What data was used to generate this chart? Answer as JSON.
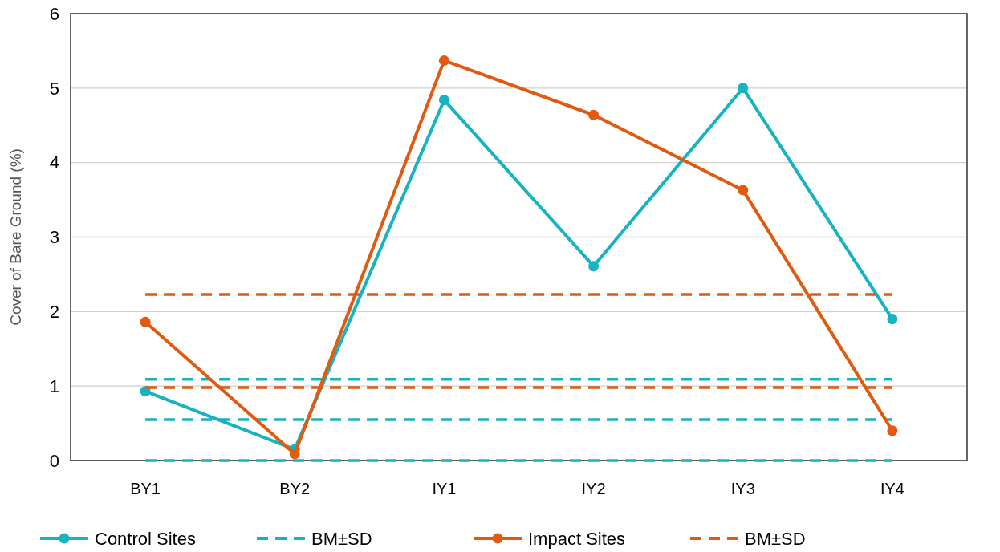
{
  "chart_data": {
    "type": "line",
    "ylabel": "Cover of Bare Ground (%)",
    "categories": [
      "BY1",
      "BY2",
      "IY1",
      "IY2",
      "IY3",
      "IY4"
    ],
    "series": [
      {
        "name": "Control Sites",
        "color": "#17b3c1",
        "values": [
          0.93,
          0.15,
          4.84,
          2.61,
          5.0,
          1.9
        ],
        "marker": "circle",
        "line_style": "solid"
      },
      {
        "name": "BM±SD",
        "color": "#17b3c1",
        "values": [
          1.09,
          1.09,
          1.09,
          1.09,
          1.09,
          1.09
        ],
        "marker": "none",
        "line_style": "dashed"
      },
      {
        "color": "#17b3c1",
        "values": [
          0.55,
          0.55,
          0.55,
          0.55,
          0.55,
          0.55
        ],
        "marker": "none",
        "line_style": "dashed"
      },
      {
        "color": "#17b3c1",
        "values": [
          0,
          0,
          0,
          0,
          0,
          0
        ],
        "marker": "none",
        "line_style": "dashed"
      },
      {
        "name": "Impact Sites",
        "color": "#e05a10",
        "values": [
          1.86,
          0.09,
          5.37,
          4.64,
          3.63,
          0.4
        ],
        "marker": "circle",
        "line_style": "solid"
      },
      {
        "name": "BM±SD",
        "color": "#e05a10",
        "values": [
          2.23,
          2.23,
          2.23,
          2.23,
          2.23,
          2.23
        ],
        "marker": "none",
        "line_style": "dashed"
      },
      {
        "color": "#e05a10",
        "values": [
          0.98,
          0.98,
          0.98,
          0.98,
          0.98,
          0.98
        ],
        "marker": "none",
        "line_style": "dashed"
      }
    ],
    "ylim": [
      0,
      6
    ],
    "yticks": [
      0,
      1,
      2,
      3,
      4,
      5,
      6
    ],
    "grid": "y",
    "legend": "bottom"
  }
}
